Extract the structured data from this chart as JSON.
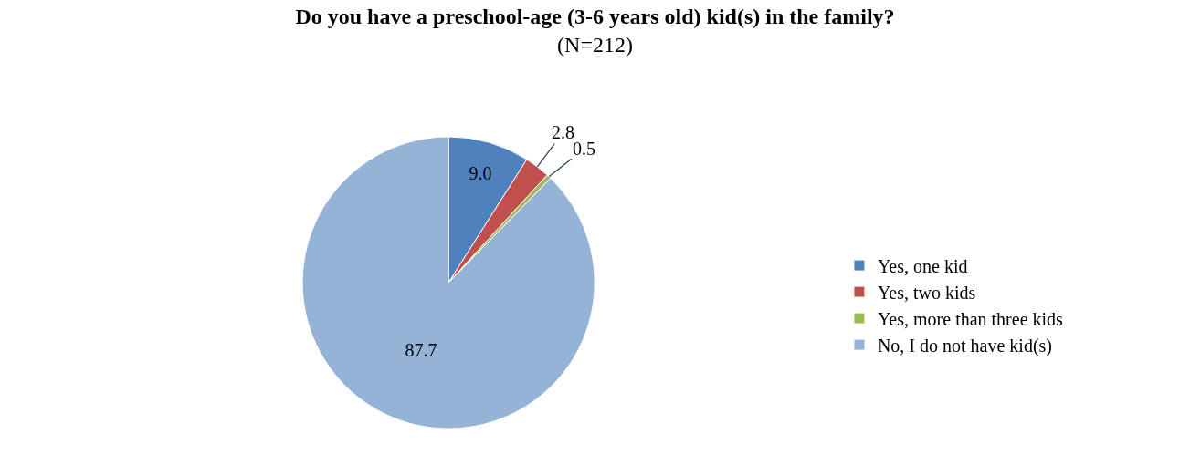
{
  "chart_data": {
    "type": "pie",
    "title": "Do you have a preschool-age (3-6 years old) kid(s) in the family?",
    "subtitle": "(N=212)",
    "categories": [
      "Yes, one kid",
      "Yes, two kids",
      "Yes, more than three kids",
      "No, I do not have kid(s)"
    ],
    "values": [
      9.0,
      2.8,
      0.5,
      87.7
    ],
    "colors": [
      "#4f81bd",
      "#c0504d",
      "#9bbb59",
      "#95b3d7"
    ],
    "value_labels": [
      "9.0",
      "2.8",
      "0.5",
      "87.7"
    ],
    "legend": "right"
  }
}
